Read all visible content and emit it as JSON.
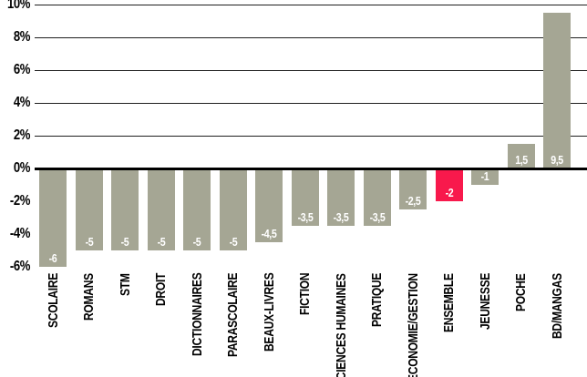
{
  "chart_data": {
    "type": "bar",
    "title": "",
    "categories": [
      "SCOLAIRE",
      "ROMANS",
      "STM",
      "DROIT",
      "DICTIONNAIRES",
      "PARASCOLAIRE",
      "BEAUX-LIVRES",
      "FICTION",
      "SCIENCES HUMAINES",
      "PRATIQUE",
      "ECONOMIE/GESTION",
      "ENSEMBLE",
      "JEUNESSE",
      "POCHE",
      "BD/MANGAS"
    ],
    "values": [
      -6,
      -5,
      -5,
      -5,
      -5,
      -5,
      -4.5,
      -3.5,
      -3.5,
      -3.5,
      -2.5,
      -2,
      -1,
      1.5,
      9.5
    ],
    "value_labels": [
      "-6",
      "-5",
      "-5",
      "-5",
      "-5",
      "-5",
      "-4,5",
      "-3,5",
      "-3,5",
      "-3,5",
      "-2,5",
      "-2",
      "-1",
      "1,5",
      "9,5"
    ],
    "highlight_category": "ENSEMBLE",
    "highlight_index": 11,
    "xlabel": "",
    "ylabel": "",
    "ylim": [
      -6.5,
      10.3
    ],
    "y_axis_ticks": [
      {
        "label": "10%",
        "value": 10
      },
      {
        "label": "8%",
        "value": 8
      },
      {
        "label": "6%",
        "value": 6
      },
      {
        "label": "4%",
        "value": 4
      },
      {
        "label": "2%",
        "value": 2
      },
      {
        "label": "0%",
        "value": 0
      },
      {
        "label": "-2%",
        "value": -2
      },
      {
        "label": "-4%",
        "value": -4
      },
      {
        "label": "-6%",
        "value": -6
      }
    ],
    "gridline_values": [
      10,
      8,
      6,
      4,
      2
    ],
    "grid": "horizontal gridlines at 2% steps above zero only; thick baseline at 0%",
    "legend": "none",
    "colors": {
      "bar": "#a5a694",
      "highlight_bar": "#f8194c",
      "bar_value_text": "#ffffff",
      "axis_text": "#000000",
      "gridline": "#1f1f1f",
      "zero_line": "#000000",
      "background": "#ffffff"
    }
  }
}
